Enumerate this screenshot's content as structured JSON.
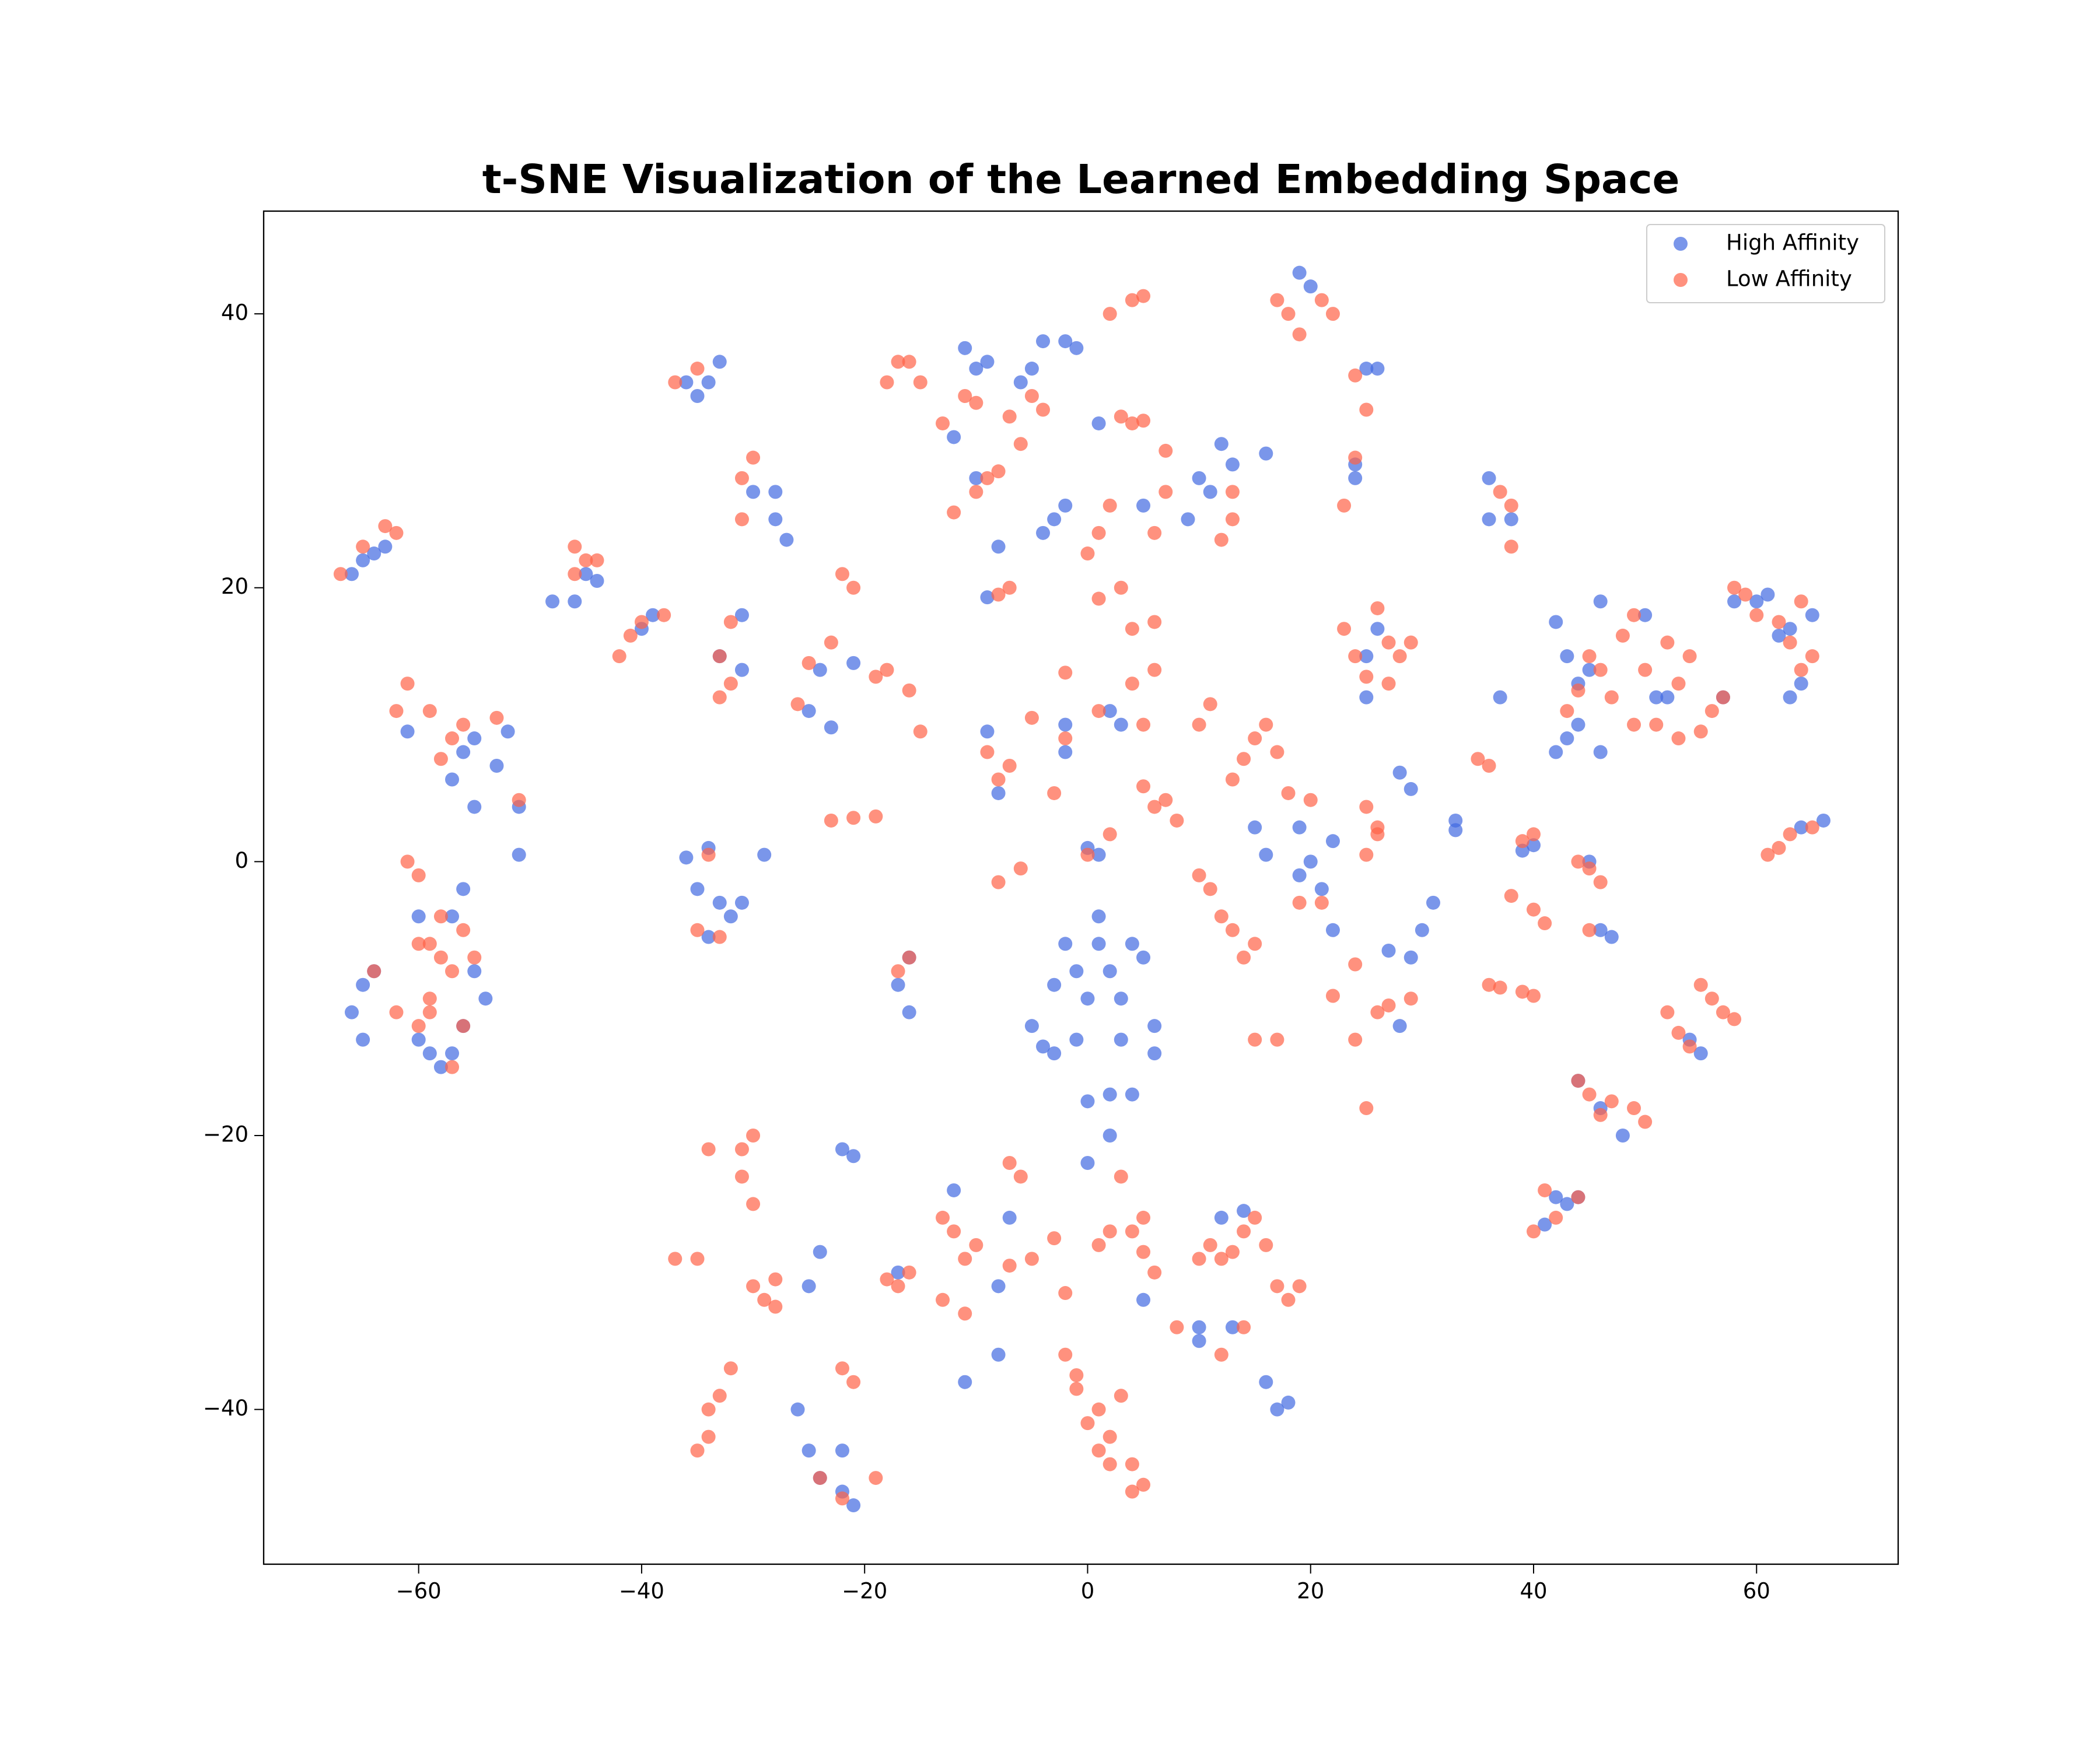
{
  "chart_data": {
    "type": "scatter",
    "title": "t-SNE Visualization of the Learned Embedding Space",
    "xlim": [
      -73.9,
      72.7
    ],
    "ylim": [
      -51.3,
      47.5
    ],
    "xticks": [
      {
        "value": -60,
        "label": "−60"
      },
      {
        "value": -40,
        "label": "−40"
      },
      {
        "value": -20,
        "label": "−20"
      },
      0,
      20,
      40,
      60
    ],
    "yticks": [
      {
        "value": -40,
        "label": "−40"
      },
      {
        "value": -20,
        "label": "−20"
      },
      0,
      20,
      40
    ],
    "grid": false,
    "legend": "upper right",
    "alpha": 0.7,
    "series": [
      {
        "name": "High Affinity",
        "color": "#4169e1",
        "x": [
          -66,
          -65,
          -63,
          -64,
          -66,
          -65,
          -64,
          -65,
          -60,
          -60,
          -59,
          -57,
          -56,
          -56,
          -55,
          -54,
          -57,
          -58,
          -61,
          -57,
          -56,
          -55,
          -53,
          -52,
          -55,
          -51,
          -51,
          -48,
          -46,
          -45,
          -44,
          -40,
          -39,
          -36,
          -35,
          -34,
          -33,
          -36,
          -35,
          -34,
          -33,
          -32,
          -31,
          -29,
          -33,
          -31,
          -31,
          -30,
          -28,
          -28,
          -27,
          -34,
          -25,
          -24,
          -23,
          -21,
          -22,
          -21,
          -25,
          -24,
          -25,
          -24,
          -22,
          -21,
          -26,
          -22,
          -17,
          -16,
          -17,
          -16,
          -12,
          -11,
          -10,
          -9,
          -10,
          -8,
          -9,
          -6,
          -5,
          -4,
          -2,
          -1,
          -3,
          -2,
          -4,
          -9,
          -8,
          -2,
          -2,
          -3,
          -2,
          -1,
          0,
          1,
          2,
          -1,
          -3,
          -5,
          -4,
          3,
          4,
          5,
          6,
          6,
          4,
          2,
          0,
          3,
          2,
          0,
          1,
          0,
          1,
          2,
          3,
          5,
          1,
          -12,
          -11,
          -8,
          -7,
          -8,
          5,
          10,
          12,
          14,
          16,
          17,
          18,
          13,
          10,
          9,
          10,
          11,
          12,
          13,
          16,
          15,
          16,
          19,
          20,
          21,
          22,
          22,
          19,
          19,
          20,
          24,
          24,
          25,
          26,
          25,
          26,
          25,
          28,
          29,
          27,
          28,
          29,
          30,
          31,
          33,
          33,
          36,
          36,
          38,
          37,
          39,
          40,
          42,
          43,
          41,
          44,
          42,
          43,
          44,
          45,
          43,
          44,
          46,
          46,
          46,
          47,
          45,
          44,
          46,
          48,
          50,
          51,
          52,
          55,
          54,
          57,
          58,
          60,
          61,
          62,
          63,
          64,
          65,
          63,
          66,
          64,
          42
        ],
        "values": [
          21,
          22,
          23,
          22.5,
          -11,
          -13,
          -8,
          -9,
          -4,
          -13,
          -14,
          -14,
          -12,
          -2,
          -8,
          -10,
          -4,
          -15,
          9.5,
          6,
          8,
          9,
          7,
          9.5,
          4,
          0.5,
          4,
          19,
          19,
          21,
          20.5,
          17,
          18,
          35,
          34,
          35,
          36.5,
          0.3,
          -2,
          1,
          -3,
          -4,
          -3,
          0.5,
          15,
          14,
          18,
          27,
          27,
          25,
          23.5,
          -5.5,
          11,
          14,
          9.8,
          14.5,
          -21,
          -21.5,
          -31,
          -28.5,
          -43,
          -45,
          -43,
          -47,
          -40,
          -46,
          -30,
          -7,
          -9,
          -11,
          31,
          37.5,
          36,
          36.5,
          28,
          23,
          19.3,
          35,
          36,
          38,
          38,
          37.5,
          25,
          26,
          24,
          9.5,
          5,
          10,
          8,
          -9,
          -6,
          -8,
          -10,
          -6,
          -8,
          -13,
          -14,
          -12,
          -13.5,
          -10,
          -6,
          -7,
          -12,
          -14,
          -17,
          -17,
          -17.5,
          -13,
          -20,
          -22,
          -4,
          1,
          0.5,
          11,
          10,
          26,
          32,
          -24,
          -38,
          -36,
          -26,
          -31,
          -32,
          -35,
          -26,
          -25.5,
          -38,
          -40,
          -39.5,
          -34,
          -34,
          25,
          28,
          27,
          30.5,
          29,
          29.8,
          2.5,
          0.5,
          -1,
          0,
          -2,
          -5,
          1.5,
          2.5,
          43,
          42,
          29,
          28,
          36,
          36,
          15,
          17,
          12,
          6.5,
          5.3,
          -6.5,
          -12,
          -7,
          -5,
          -3,
          3,
          2.3,
          28,
          25,
          25,
          12,
          0.8,
          1.2,
          -24.5,
          -25,
          -26.5,
          -24.5,
          8,
          9,
          10,
          14,
          15,
          13,
          19,
          8,
          -5,
          -5.5,
          0,
          -16,
          -18,
          -20,
          18,
          12,
          12,
          -14,
          -13,
          12,
          19,
          19,
          19.5,
          16.5,
          17,
          13,
          18,
          12,
          3,
          2.5,
          17.5
        ]
      },
      {
        "name": "Low Affinity",
        "color": "#ff6347",
        "x": [
          -67,
          -65,
          -63,
          -62,
          -64,
          -62,
          -61,
          -60,
          -60,
          -59,
          -60,
          -59,
          -58,
          -57,
          -56,
          -55,
          -56,
          -57,
          -58,
          -59,
          -62,
          -61,
          -59,
          -58,
          -57,
          -56,
          -53,
          -51,
          -46,
          -45,
          -46,
          -44,
          -42,
          -41,
          -40,
          -38,
          -37,
          -35,
          -37,
          -35,
          -34,
          -35,
          -34,
          -33,
          -33,
          -32,
          -33,
          -32,
          -31,
          -30,
          -31,
          -26,
          -25,
          -23,
          -21,
          -19,
          -23,
          -22,
          -21,
          -19,
          -18,
          -16,
          -15,
          -24,
          -22,
          -21,
          -19,
          -22,
          -34,
          -35,
          -34,
          -33,
          -32,
          -31,
          -30,
          -31,
          -30,
          -30,
          -29,
          -28,
          -28,
          -18,
          -17,
          -16,
          -17,
          -16,
          -18,
          -17,
          -13,
          -11,
          -10,
          -12,
          -10,
          -9,
          -8,
          -7,
          -6,
          -5,
          -4,
          -7,
          -8,
          -9,
          -8,
          -7,
          -8,
          -6,
          -5,
          -2,
          -2,
          -3,
          0,
          1,
          2,
          1,
          3,
          3,
          4,
          5,
          2,
          4,
          5,
          0,
          2,
          1,
          4,
          5,
          6,
          5,
          6,
          7,
          8,
          4,
          6,
          6,
          7,
          7,
          11,
          10,
          10,
          11,
          12,
          13,
          14,
          15,
          15,
          17,
          13,
          14,
          15,
          16,
          17,
          13,
          12,
          13,
          18,
          19,
          17,
          21,
          22,
          18,
          20,
          19,
          21,
          24,
          22,
          24,
          25,
          26,
          27,
          29,
          25,
          26,
          25,
          26,
          24,
          23,
          26,
          27,
          28,
          29,
          27,
          25,
          24,
          25,
          24,
          23,
          35,
          36,
          37,
          38,
          38,
          36,
          37,
          39,
          40,
          38,
          40,
          41,
          40,
          39,
          44,
          45,
          46,
          45,
          44,
          45,
          47,
          49,
          50,
          46,
          40,
          42,
          44,
          41,
          43,
          44,
          45,
          46,
          48,
          49,
          47,
          49,
          50,
          51,
          52,
          53,
          54,
          53,
          55,
          56,
          57,
          58,
          59,
          60,
          62,
          64,
          63,
          64,
          65,
          61,
          62,
          63,
          65,
          52,
          53,
          54,
          55,
          56,
          57,
          58,
          -13,
          -12,
          -10,
          -11,
          -13,
          -11,
          -7,
          -6,
          -5,
          -7,
          -3,
          -2,
          -2,
          -1,
          -1,
          1,
          0,
          1,
          2,
          3,
          2,
          4,
          5,
          4,
          1,
          2,
          4,
          5,
          3,
          5,
          6,
          10,
          11,
          13,
          12,
          14,
          15,
          16,
          17,
          18,
          19,
          14,
          12,
          8,
          -15,
          -16
        ],
        "values": [
          21,
          23,
          24.5,
          24,
          -8,
          -11,
          0,
          -1,
          -6,
          -10,
          -12,
          -11,
          -7,
          -8,
          -5,
          -7,
          -12,
          -15,
          -4,
          -6,
          11,
          13,
          11,
          7.5,
          9,
          10,
          10.5,
          4.5,
          23,
          22,
          21,
          22,
          15,
          16.5,
          17.5,
          18,
          35,
          36,
          -29,
          -29,
          -21,
          -5,
          0.5,
          -5.5,
          12,
          13,
          15,
          17.5,
          28,
          29.5,
          25,
          11.5,
          14.5,
          3,
          3.2,
          3.3,
          16,
          21,
          20,
          13.5,
          14,
          12.5,
          9.5,
          -45,
          -37,
          -38,
          -45,
          -46.5,
          -40,
          -43,
          -42,
          -39,
          -37,
          -21,
          -20,
          -23,
          -25,
          -31,
          -32,
          -30.5,
          -32.5,
          -30.5,
          -31,
          -30,
          -8,
          -7,
          35,
          36.5,
          32,
          34,
          33.5,
          25.5,
          27,
          28,
          28.5,
          32.5,
          30.5,
          34,
          33,
          20,
          19.5,
          8,
          6,
          7,
          -1.5,
          -0.5,
          10.5,
          13.8,
          9,
          5,
          22.5,
          24,
          26,
          19.2,
          20,
          32.5,
          32,
          32.2,
          40,
          41,
          41.3,
          0.5,
          2,
          11,
          13,
          10,
          14,
          5.5,
          4,
          4.5,
          3,
          17,
          17.5,
          24,
          27,
          30,
          -2,
          -1,
          10,
          11.5,
          -4,
          -5,
          -7,
          -6,
          -13,
          -13,
          6,
          7.5,
          9,
          10,
          8,
          25,
          23.5,
          27,
          40,
          38.5,
          41,
          41,
          40,
          5,
          4.5,
          -3,
          -3,
          -7.5,
          -9.8,
          -13,
          -18,
          -11,
          -10.5,
          -10,
          0.5,
          2,
          4,
          2.5,
          15,
          17,
          18.5,
          16,
          15,
          16,
          13,
          13.5,
          35.5,
          33,
          29.5,
          26,
          7.5,
          7,
          27,
          26,
          23,
          -9,
          -9.2,
          -9.5,
          -9.8,
          -2.5,
          -3.5,
          -4.5,
          2,
          1.5,
          0,
          -0.5,
          -1.5,
          -5,
          -16,
          -17,
          -17.5,
          -18,
          -19,
          -18.5,
          -27,
          -26,
          -24.5,
          -24,
          11,
          12.5,
          15,
          14,
          16.5,
          18,
          12,
          10,
          14,
          10,
          16,
          13,
          15,
          9,
          9.5,
          11,
          12,
          20,
          19.5,
          18,
          17.5,
          19,
          16,
          14,
          15,
          0.5,
          1,
          2,
          2.5,
          -11,
          -12.5,
          -13.5,
          -9,
          -10,
          -11,
          -11.5,
          -26,
          -27,
          -28,
          -29,
          -32,
          -33,
          -22,
          -23,
          -29,
          -29.5,
          -27.5,
          -31.5,
          -36,
          -37.5,
          -38.5,
          -43,
          -41,
          -40,
          -42,
          -39,
          -44,
          -44,
          -45.5,
          -46,
          -28,
          -27,
          -27,
          -26,
          -23,
          -28.5,
          -30,
          -29,
          -28,
          -28.5,
          -29,
          -27,
          -26,
          -28,
          -31,
          -32,
          -31,
          -34,
          -36,
          -34,
          35,
          36.5
        ]
      }
    ]
  }
}
